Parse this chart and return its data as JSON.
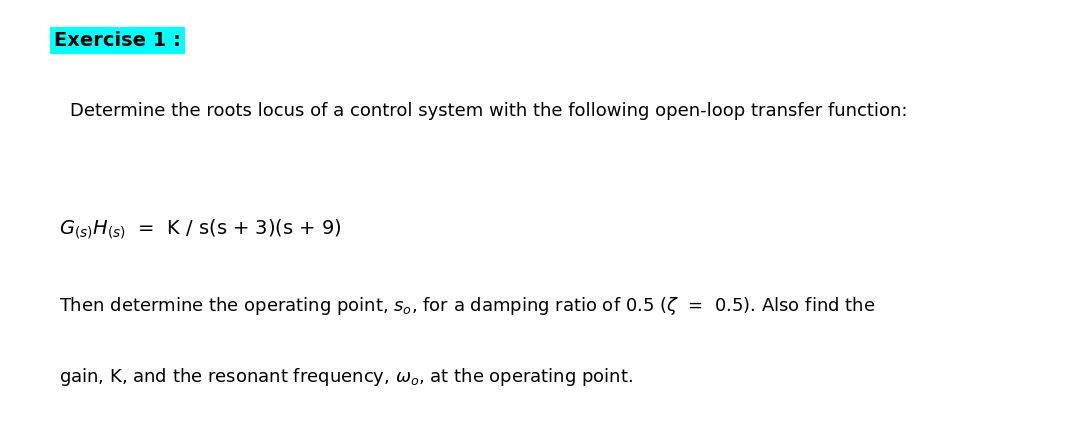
{
  "background_color": "#ffffff",
  "title_text": "Exercise 1 :",
  "title_box_color": "#00ffff",
  "title_fontsize": 14,
  "line1_text": "Determine the roots locus of a control system with the following open-loop transfer function:",
  "line1_fontsize": 13,
  "formula_str": "$G_{(s)}H_{(s)}$  =  K / s(s + 3)(s + 9)",
  "formula_fontsize": 14,
  "body_line1": "Then determine the operating point, $s_o$, for a damping ratio of 0.5 ($\\zeta$  =  0.5). Also find the",
  "body_line2": "gain, K, and the resonant frequency, $\\omega_o$, at the operating point.",
  "body_fontsize": 13,
  "fig_width": 10.8,
  "fig_height": 4.44,
  "dpi": 100
}
